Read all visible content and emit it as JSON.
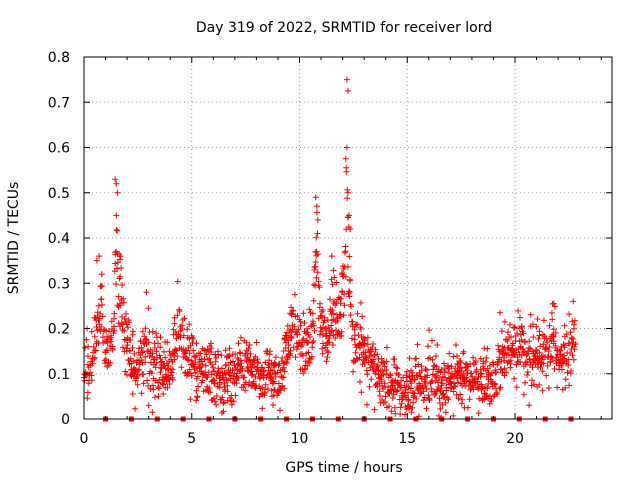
{
  "chart_data": {
    "type": "scatter",
    "title": "Day 319 of 2022, SRMTID for receiver lord",
    "xlabel": "GPS time / hours",
    "ylabel": "SRMTID / TECUs",
    "xlim": [
      0,
      24.5
    ],
    "ylim": [
      0,
      0.8
    ],
    "x_ticks": [
      0,
      5,
      10,
      15,
      20
    ],
    "x_tick_labels": [
      "0",
      "5",
      "10",
      "15",
      "20"
    ],
    "y_ticks": [
      0,
      0.1,
      0.2,
      0.3,
      0.4,
      0.5,
      0.6,
      0.7,
      0.8
    ],
    "y_tick_labels": [
      "0",
      "0.1",
      "0.2",
      "0.3",
      "0.4",
      "0.5",
      "0.6",
      "0.7",
      "0.8"
    ],
    "grid": true,
    "marker": "+",
    "color": "#ff0000",
    "baseline_marks_x": [
      1.0,
      2.2,
      3.4,
      4.6,
      5.8,
      7.0,
      8.2,
      9.4,
      10.6,
      11.8,
      13.0,
      14.2,
      15.4,
      16.6,
      17.8,
      19.0,
      20.2,
      21.4,
      22.6
    ],
    "series": [
      {
        "name": "SRMTID",
        "trend": {
          "x": [
            0.0,
            0.3,
            0.6,
            0.8,
            1.0,
            1.2,
            1.4,
            1.5,
            1.6,
            1.8,
            2.0,
            2.2,
            2.5,
            2.8,
            3.0,
            3.3,
            3.6,
            4.0,
            4.3,
            4.6,
            5.0,
            5.5,
            6.0,
            6.5,
            7.0,
            7.5,
            8.0,
            8.5,
            9.0,
            9.4,
            9.7,
            10.0,
            10.3,
            10.6,
            10.8,
            11.0,
            11.3,
            11.6,
            11.9,
            12.1,
            12.2,
            12.3,
            12.4,
            12.6,
            12.9,
            13.3,
            13.7,
            14.0,
            14.5,
            15.0,
            15.5,
            16.0,
            16.5,
            17.0,
            17.5,
            18.0,
            18.5,
            18.9,
            19.2,
            19.5,
            20.0,
            20.5,
            21.0,
            21.5,
            21.8,
            22.0,
            22.3,
            22.6,
            22.8
          ],
          "y": [
            0.1,
            0.11,
            0.2,
            0.28,
            0.14,
            0.16,
            0.2,
            0.42,
            0.3,
            0.22,
            0.18,
            0.13,
            0.11,
            0.15,
            0.17,
            0.1,
            0.12,
            0.1,
            0.2,
            0.16,
            0.13,
            0.12,
            0.1,
            0.09,
            0.11,
            0.12,
            0.1,
            0.09,
            0.09,
            0.15,
            0.19,
            0.18,
            0.16,
            0.2,
            0.38,
            0.2,
            0.16,
            0.25,
            0.22,
            0.3,
            0.55,
            0.32,
            0.2,
            0.15,
            0.17,
            0.12,
            0.09,
            0.08,
            0.08,
            0.06,
            0.08,
            0.09,
            0.08,
            0.08,
            0.1,
            0.09,
            0.08,
            0.07,
            0.1,
            0.15,
            0.15,
            0.13,
            0.14,
            0.15,
            0.19,
            0.12,
            0.13,
            0.15,
            0.18
          ]
        },
        "spread": 0.045,
        "sample_step_hours": 0.02,
        "start_hour": 0.0,
        "end_hour": 22.8
      }
    ],
    "peaks": [
      {
        "x": 0.6,
        "y": 0.35
      },
      {
        "x": 0.7,
        "y": 0.36
      },
      {
        "x": 1.45,
        "y": 0.53
      },
      {
        "x": 1.5,
        "y": 0.52
      },
      {
        "x": 1.55,
        "y": 0.5
      },
      {
        "x": 1.5,
        "y": 0.45
      },
      {
        "x": 1.7,
        "y": 0.36
      },
      {
        "x": 2.9,
        "y": 0.28
      },
      {
        "x": 10.75,
        "y": 0.49
      },
      {
        "x": 10.8,
        "y": 0.47
      },
      {
        "x": 10.85,
        "y": 0.44
      },
      {
        "x": 11.5,
        "y": 0.36
      },
      {
        "x": 12.2,
        "y": 0.75
      },
      {
        "x": 12.25,
        "y": 0.725
      },
      {
        "x": 12.2,
        "y": 0.6
      },
      {
        "x": 12.15,
        "y": 0.575
      },
      {
        "x": 12.25,
        "y": 0.5
      },
      {
        "x": 12.3,
        "y": 0.45
      },
      {
        "x": 12.35,
        "y": 0.42
      },
      {
        "x": 19.3,
        "y": 0.235
      },
      {
        "x": 21.8,
        "y": 0.255
      },
      {
        "x": 22.7,
        "y": 0.26
      },
      {
        "x": 3.0,
        "y": 0.03
      },
      {
        "x": 14.9,
        "y": 0.01
      }
    ]
  }
}
